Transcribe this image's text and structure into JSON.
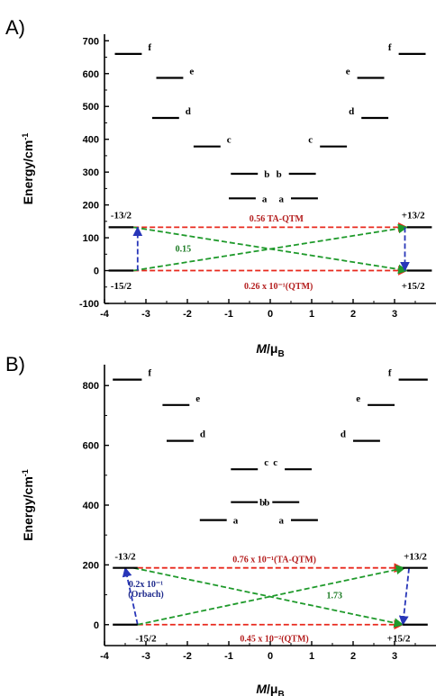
{
  "colors": {
    "level": "#000000",
    "red": "#e8281c",
    "green": "#1f9a2b",
    "blue": "#2836b8",
    "red_text": "#b41e1e",
    "green_text": "#1a7a22",
    "blue_text": "#1e2a8c"
  },
  "chart_data": [
    {
      "panel": "A)",
      "type": "energy-level diagram",
      "xlabel": "M/μB",
      "ylabel": "Energy/cm-1",
      "xlim": [
        -4,
        4
      ],
      "ylim": [
        -100,
        720
      ],
      "xticks": [
        -4,
        -3,
        -2,
        -1,
        0,
        1,
        2,
        3
      ],
      "xtick_labels": [
        "-4",
        "-3",
        "-2",
        "-1",
        "0",
        "1",
        "2",
        "3"
      ],
      "yticks": [
        -100,
        0,
        100,
        200,
        300,
        400,
        500,
        600,
        700
      ],
      "ytick_labels": [
        "-100",
        "0",
        "100",
        "200",
        "300",
        "400",
        "500",
        "600",
        "700"
      ],
      "levels": [
        {
          "label": "",
          "energy": 0,
          "x_range": [
            -3.9,
            -3.3
          ],
          "side": "left"
        },
        {
          "label": "",
          "energy": 0,
          "x_range": [
            3.3,
            3.9
          ],
          "side": "right"
        },
        {
          "label": "",
          "energy": 132,
          "x_range": [
            -3.9,
            -3.3
          ],
          "side": "left"
        },
        {
          "label": "",
          "energy": 132,
          "x_range": [
            3.3,
            3.9
          ],
          "side": "right"
        },
        {
          "label": "a",
          "energy": 220,
          "x_range": [
            -1.0,
            -0.35
          ],
          "side": "left"
        },
        {
          "label": "a",
          "energy": 220,
          "x_range": [
            0.5,
            1.15
          ],
          "side": "right"
        },
        {
          "label": "b",
          "energy": 295,
          "x_range": [
            -0.95,
            -0.3
          ],
          "side": "left"
        },
        {
          "label": "b",
          "energy": 295,
          "x_range": [
            0.45,
            1.1
          ],
          "side": "right"
        },
        {
          "label": "c",
          "energy": 378,
          "x_range": [
            -1.85,
            -1.2
          ],
          "side": "left"
        },
        {
          "label": "c",
          "energy": 378,
          "x_range": [
            1.2,
            1.85
          ],
          "side": "right"
        },
        {
          "label": "d",
          "energy": 465,
          "x_range": [
            -2.85,
            -2.2
          ],
          "side": "left"
        },
        {
          "label": "d",
          "energy": 465,
          "x_range": [
            2.2,
            2.85
          ],
          "side": "right"
        },
        {
          "label": "e",
          "energy": 587,
          "x_range": [
            -2.75,
            -2.1
          ],
          "side": "left"
        },
        {
          "label": "e",
          "energy": 587,
          "x_range": [
            2.1,
            2.75
          ],
          "side": "right"
        },
        {
          "label": "f",
          "energy": 660,
          "x_range": [
            -3.75,
            -3.1
          ],
          "side": "left"
        },
        {
          "label": "f",
          "energy": 660,
          "x_range": [
            3.1,
            3.75
          ],
          "side": "right"
        }
      ],
      "states": [
        {
          "label": "-13/2",
          "x": -3.6,
          "y": 170
        },
        {
          "label": "-15/2",
          "x": -3.6,
          "y": -45
        },
        {
          "label": "+13/2",
          "x": 3.45,
          "y": 170
        },
        {
          "label": "+15/2",
          "x": 3.45,
          "y": -45
        }
      ],
      "transitions": [
        {
          "kind": "red",
          "from": [
            -3.3,
            132
          ],
          "to": [
            3.3,
            132
          ]
        },
        {
          "kind": "red",
          "from": [
            -3.3,
            0
          ],
          "to": [
            3.3,
            0
          ]
        },
        {
          "kind": "green",
          "from": [
            -3.3,
            0
          ],
          "to": [
            3.3,
            132
          ]
        },
        {
          "kind": "green",
          "from": [
            -3.3,
            132
          ],
          "to": [
            3.3,
            0
          ]
        },
        {
          "kind": "blue",
          "from": [
            -3.2,
            0
          ],
          "to": [
            -3.2,
            132
          ]
        },
        {
          "kind": "blue",
          "from": [
            3.25,
            132
          ],
          "to": [
            3.25,
            0
          ]
        }
      ],
      "annotations": [
        {
          "text": "0.56  TA-QTM",
          "x": 0.15,
          "y": 160,
          "color": "red_text"
        },
        {
          "text": "0.15",
          "x": -2.1,
          "y": 68,
          "color": "green_text"
        },
        {
          "text": "0.26 x 10⁻¹(QTM)",
          "x": 0.2,
          "y": -45,
          "color": "red_text"
        }
      ]
    },
    {
      "panel": "B)",
      "type": "energy-level diagram",
      "xlabel": "M/μB",
      "ylabel": "Energy/cm-1",
      "xlim": [
        -4,
        4
      ],
      "ylim": [
        -70,
        870
      ],
      "xticks": [
        -4,
        -3,
        -2,
        -1,
        0,
        1,
        2,
        3
      ],
      "xtick_labels": [
        "-4",
        "-3",
        "-2",
        "-1",
        "0",
        "1",
        "2",
        "3"
      ],
      "yticks": [
        0,
        200,
        400,
        600,
        800
      ],
      "ytick_labels": [
        "0",
        "200",
        "400",
        "600",
        "800"
      ],
      "levels": [
        {
          "label": "",
          "energy": 0,
          "x_range": [
            -3.8,
            -3.2
          ],
          "side": "left"
        },
        {
          "label": "",
          "energy": 0,
          "x_range": [
            3.2,
            3.8
          ],
          "side": "right"
        },
        {
          "label": "",
          "energy": 190,
          "x_range": [
            -3.8,
            -3.2
          ],
          "side": "left"
        },
        {
          "label": "",
          "energy": 190,
          "x_range": [
            3.2,
            3.8
          ],
          "side": "right"
        },
        {
          "label": "a",
          "energy": 350,
          "x_range": [
            -1.7,
            -1.05
          ],
          "side": "left"
        },
        {
          "label": "a",
          "energy": 350,
          "x_range": [
            0.5,
            1.15
          ],
          "side": "right"
        },
        {
          "label": "b",
          "energy": 410,
          "x_range": [
            -0.95,
            -0.3
          ],
          "side": "left"
        },
        {
          "label": "b",
          "energy": 410,
          "x_range": [
            0.05,
            0.7
          ],
          "side": "right"
        },
        {
          "label": "c",
          "energy": 520,
          "x_range": [
            -0.95,
            -0.3
          ],
          "side": "left"
        },
        {
          "label": "c",
          "energy": 520,
          "x_range": [
            0.35,
            1.0
          ],
          "side": "right"
        },
        {
          "label": "d",
          "energy": 615,
          "x_range": [
            -2.5,
            -1.85
          ],
          "side": "left"
        },
        {
          "label": "d",
          "energy": 615,
          "x_range": [
            2.0,
            2.65
          ],
          "side": "right"
        },
        {
          "label": "e",
          "energy": 735,
          "x_range": [
            -2.6,
            -1.95
          ],
          "side": "left"
        },
        {
          "label": "e",
          "energy": 735,
          "x_range": [
            2.35,
            3.0
          ],
          "side": "right"
        },
        {
          "label": "f",
          "energy": 820,
          "x_range": [
            -3.8,
            -3.1
          ],
          "side": "left"
        },
        {
          "label": "f",
          "energy": 820,
          "x_range": [
            3.1,
            3.8
          ],
          "side": "right"
        }
      ],
      "states": [
        {
          "label": "-13/2",
          "x": -3.5,
          "y": 230
        },
        {
          "label": "-15/2",
          "x": -3.0,
          "y": -45
        },
        {
          "label": "+13/2",
          "x": 3.5,
          "y": 230
        },
        {
          "label": "+15/2",
          "x": 3.1,
          "y": -45
        }
      ],
      "transitions": [
        {
          "kind": "red",
          "from": [
            -3.2,
            190
          ],
          "to": [
            3.2,
            190
          ]
        },
        {
          "kind": "red",
          "from": [
            -3.2,
            0
          ],
          "to": [
            3.2,
            0
          ]
        },
        {
          "kind": "green",
          "from": [
            -3.2,
            0
          ],
          "to": [
            3.25,
            190
          ]
        },
        {
          "kind": "green",
          "from": [
            -3.3,
            190
          ],
          "to": [
            3.2,
            0
          ]
        },
        {
          "kind": "blue",
          "from": [
            -3.2,
            0
          ],
          "to": [
            -3.5,
            190
          ]
        },
        {
          "kind": "blue",
          "from": [
            3.35,
            190
          ],
          "to": [
            3.2,
            0
          ]
        }
      ],
      "annotations": [
        {
          "text": "0.76 x 10⁻¹(TA-QTM)",
          "x": 0.1,
          "y": 220,
          "color": "red_text"
        },
        {
          "text": "0.2x 10⁻¹",
          "x": -3.0,
          "y": 138,
          "color": "blue_text"
        },
        {
          "text": "(Orbach)",
          "x": -3.0,
          "y": 104,
          "color": "blue_text"
        },
        {
          "text": "1.73",
          "x": 1.55,
          "y": 100,
          "color": "green_text"
        },
        {
          "text": "0.45 x 10⁻²(QTM)",
          "x": 0.1,
          "y": -45,
          "color": "red_text"
        }
      ]
    }
  ]
}
